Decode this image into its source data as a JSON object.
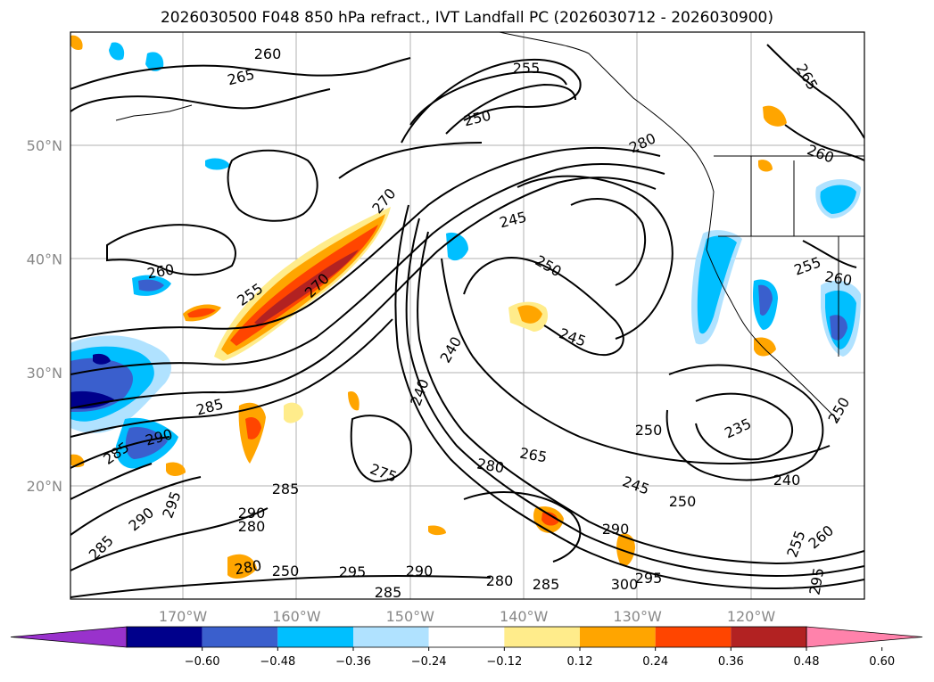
{
  "title": "2026030500 F048 850 hPa refract., IVT Landfall PC (2026030712 - 2026030900)",
  "map": {
    "lat_labels": [
      {
        "label": "50°N",
        "lat": 50
      },
      {
        "label": "40°N",
        "lat": 40
      },
      {
        "label": "30°N",
        "lat": 30
      },
      {
        "label": "20°N",
        "lat": 20
      }
    ],
    "lon_labels": [
      {
        "label": "170°W",
        "lon": -170
      },
      {
        "label": "160°W",
        "lon": -160
      },
      {
        "label": "150°W",
        "lon": -150
      },
      {
        "label": "140°W",
        "lon": -140
      },
      {
        "label": "130°W",
        "lon": -130
      },
      {
        "label": "120°W",
        "lon": -120
      }
    ],
    "contour_labels": [
      "265",
      "255",
      "250",
      "260",
      "265",
      "245",
      "250",
      "280",
      "260",
      "255",
      "260",
      "255",
      "260",
      "270",
      "285",
      "290",
      "285",
      "240",
      "245",
      "275",
      "280",
      "265",
      "245",
      "250",
      "235",
      "240",
      "250",
      "285",
      "290",
      "295",
      "290",
      "285",
      "280",
      "280",
      "295",
      "290",
      "285",
      "280",
      "285",
      "290",
      "300",
      "295",
      "260",
      "255",
      "295",
      "250",
      "270",
      "250",
      "240"
    ]
  },
  "colorbar": {
    "colors": [
      "#9932cc",
      "#00008b",
      "#3a5fcd",
      "#00bfff",
      "#b0e2ff",
      "#ffffff",
      "#ffec8b",
      "#ffa500",
      "#ff4500",
      "#b22222",
      "#ff82ab"
    ],
    "tick_labels": [
      "−0.60",
      "−0.48",
      "−0.36",
      "−0.24",
      "−0.12",
      "0.12",
      "0.24",
      "0.36",
      "0.48",
      "0.60"
    ]
  }
}
